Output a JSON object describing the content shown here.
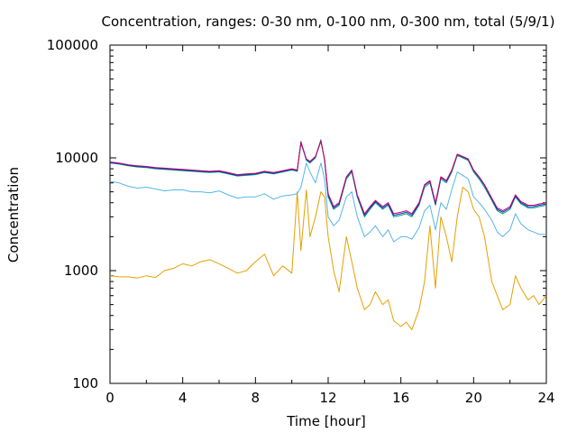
{
  "chart_data": {
    "type": "line",
    "title": "Concentration, ranges: 0-30 nm, 0-100 nm, 0-300 nm, total (5/9/1)",
    "xlabel": "Time [hour]",
    "ylabel": "Concentration",
    "xlim": [
      0,
      24
    ],
    "ylim": [
      100,
      100000
    ],
    "yscale": "log",
    "grid": false,
    "x_ticks": [
      0,
      4,
      8,
      12,
      16,
      20,
      24
    ],
    "x_tick_labels": [
      "0",
      "4",
      "8",
      "12",
      "16",
      "20",
      "24"
    ],
    "y_ticks": [
      100,
      1000,
      10000,
      100000
    ],
    "y_tick_labels": [
      "100",
      "1000",
      "10000",
      "100000"
    ],
    "x": [
      0,
      0.5,
      1,
      1.5,
      2,
      2.5,
      3,
      3.5,
      4,
      4.5,
      5,
      5.5,
      6,
      6.5,
      7,
      7.5,
      8,
      8.5,
      9,
      9.5,
      10,
      10.3,
      10.5,
      10.8,
      11,
      11.3,
      11.6,
      11.8,
      12,
      12.3,
      12.6,
      13,
      13.3,
      13.6,
      14,
      14.3,
      14.6,
      15,
      15.3,
      15.6,
      16,
      16.3,
      16.6,
      17,
      17.3,
      17.6,
      17.9,
      18.2,
      18.5,
      18.8,
      19.1,
      19.4,
      19.7,
      20,
      20.3,
      20.6,
      21,
      21.3,
      21.6,
      22,
      22.3,
      22.6,
      23,
      23.3,
      23.6,
      24
    ],
    "series": [
      {
        "color": "#e6a000",
        "values": [
          900,
          880,
          880,
          860,
          900,
          870,
          1000,
          1050,
          1150,
          1100,
          1200,
          1250,
          1150,
          1050,
          950,
          1000,
          1200,
          1400,
          900,
          1100,
          950,
          5000,
          1500,
          5200,
          2000,
          3000,
          5000,
          4500,
          2000,
          1000,
          650,
          2000,
          1200,
          700,
          450,
          500,
          650,
          500,
          550,
          360,
          320,
          350,
          300,
          450,
          800,
          2500,
          700,
          3000,
          2000,
          1200,
          3000,
          5500,
          5000,
          3500,
          3000,
          2000,
          800,
          600,
          450,
          500,
          900,
          700,
          550,
          600,
          500,
          600
        ]
      },
      {
        "color": "#56b4e9",
        "values": [
          6200,
          6000,
          5600,
          5400,
          5500,
          5300,
          5100,
          5200,
          5200,
          5000,
          5000,
          4900,
          5100,
          4700,
          4400,
          4500,
          4500,
          4800,
          4300,
          4600,
          4700,
          4800,
          5500,
          9000,
          7500,
          6000,
          9000,
          6500,
          3000,
          2500,
          2800,
          4500,
          5000,
          3000,
          2000,
          2200,
          2500,
          2000,
          2300,
          1800,
          2000,
          2000,
          1900,
          2400,
          3400,
          3800,
          2300,
          4000,
          3500,
          5200,
          7500,
          7000,
          6500,
          4500,
          4000,
          3500,
          2800,
          2200,
          2000,
          2300,
          3200,
          2600,
          2300,
          2200,
          2100,
          2100
        ]
      },
      {
        "color": "#009e73",
        "values": [
          9000,
          8800,
          8500,
          8300,
          8200,
          8000,
          7900,
          7800,
          7700,
          7600,
          7500,
          7400,
          7500,
          7200,
          6900,
          7000,
          7100,
          7400,
          7200,
          7500,
          7800,
          7600,
          14000,
          9500,
          9000,
          10000,
          14500,
          9500,
          4500,
          3500,
          3800,
          6500,
          7500,
          4500,
          3000,
          3500,
          4000,
          3500,
          3800,
          3000,
          3100,
          3200,
          3000,
          3800,
          5500,
          6000,
          3800,
          6500,
          6000,
          7500,
          10500,
          10000,
          9500,
          7500,
          6500,
          5500,
          4200,
          3400,
          3200,
          3500,
          4500,
          3900,
          3600,
          3600,
          3700,
          3800
        ]
      },
      {
        "color": "#0033cc",
        "values": [
          9100,
          8900,
          8600,
          8400,
          8300,
          8100,
          8000,
          7900,
          7800,
          7700,
          7600,
          7500,
          7600,
          7300,
          7000,
          7100,
          7200,
          7500,
          7300,
          7600,
          7900,
          7700,
          13500,
          9700,
          9200,
          10200,
          14000,
          9700,
          4700,
          3600,
          3900,
          6700,
          7700,
          4600,
          3100,
          3600,
          4100,
          3600,
          3900,
          3100,
          3200,
          3300,
          3100,
          3900,
          5700,
          6200,
          3900,
          6700,
          6200,
          7700,
          10700,
          10200,
          9700,
          7700,
          6700,
          5700,
          4300,
          3500,
          3300,
          3600,
          4600,
          4000,
          3700,
          3700,
          3800,
          3900
        ]
      },
      {
        "color": "#cc0066",
        "values": [
          9200,
          9000,
          8700,
          8500,
          8400,
          8200,
          8100,
          8000,
          7900,
          7800,
          7700,
          7600,
          7700,
          7400,
          7100,
          7200,
          7300,
          7600,
          7400,
          7700,
          8000,
          7800,
          13800,
          9800,
          9300,
          10300,
          14200,
          9800,
          4800,
          3700,
          4000,
          6800,
          7800,
          4700,
          3200,
          3700,
          4200,
          3700,
          4000,
          3200,
          3300,
          3400,
          3200,
          4000,
          5800,
          6300,
          4000,
          6800,
          6300,
          7800,
          10800,
          10300,
          9800,
          7800,
          6800,
          5800,
          4400,
          3600,
          3400,
          3700,
          4700,
          4100,
          3800,
          3800,
          3900,
          4000
        ]
      }
    ]
  }
}
